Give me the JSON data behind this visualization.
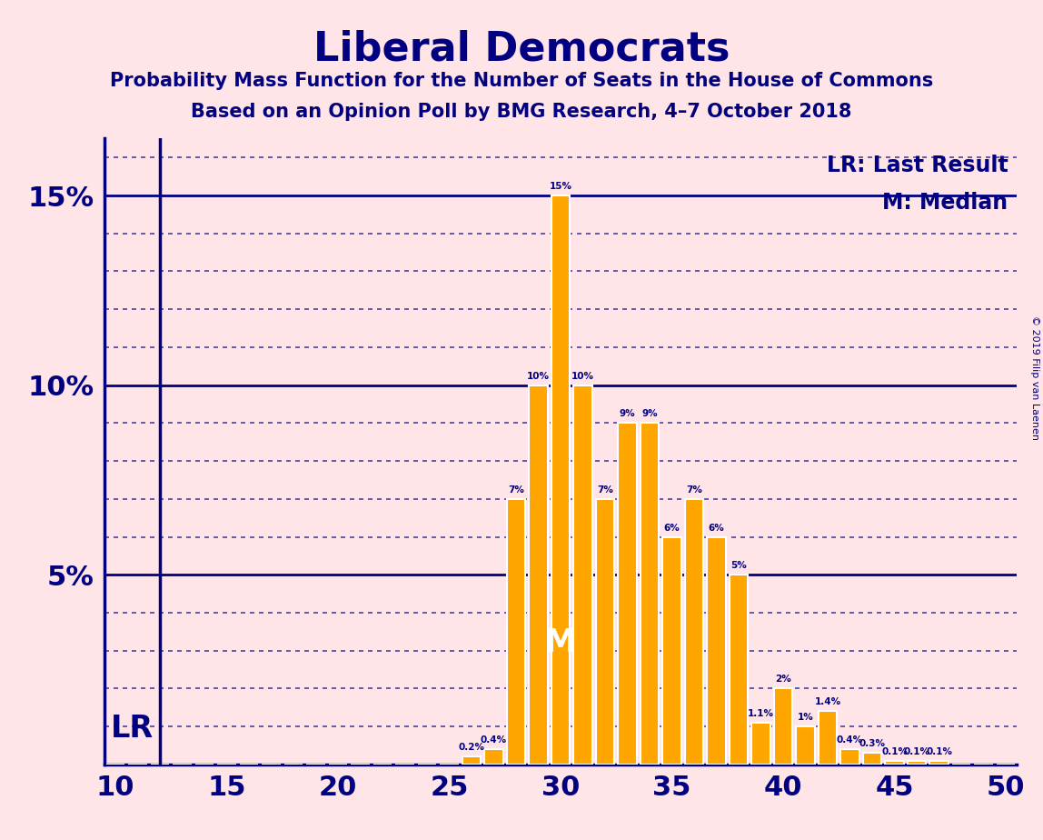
{
  "title": "Liberal Democrats",
  "subtitle1": "Probability Mass Function for the Number of Seats in the House of Commons",
  "subtitle2": "Based on an Opinion Poll by BMG Research, 4–7 October 2018",
  "copyright": "© 2019 Filip van Laenen",
  "background_color": "#FFE4E8",
  "bar_color": "#FFA500",
  "bar_edge_color": "#FFFFFF",
  "text_color": "#000080",
  "solid_line_color": "#000080",
  "dotted_line_color": "#4444AA",
  "seats": [
    10,
    11,
    12,
    13,
    14,
    15,
    16,
    17,
    18,
    19,
    20,
    21,
    22,
    23,
    24,
    25,
    26,
    27,
    28,
    29,
    30,
    31,
    32,
    33,
    34,
    35,
    36,
    37,
    38,
    39,
    40,
    41,
    42,
    43,
    44,
    45,
    46,
    47,
    48,
    49,
    50
  ],
  "probabilities": [
    0.0,
    0.0,
    0.0,
    0.0,
    0.0,
    0.0,
    0.0,
    0.0,
    0.0,
    0.0,
    0.0,
    0.0,
    0.0,
    0.0,
    0.0,
    0.0,
    0.2,
    0.4,
    7.0,
    10.0,
    15.0,
    10.0,
    7.0,
    9.0,
    9.0,
    6.0,
    7.0,
    6.0,
    5.0,
    1.1,
    2.0,
    1.0,
    1.4,
    0.4,
    0.3,
    0.1,
    0.1,
    0.1,
    0.0,
    0.0,
    0.0
  ],
  "xlim": [
    9.5,
    50.5
  ],
  "ylim": [
    0,
    16.5
  ],
  "yticks": [
    5,
    10,
    15
  ],
  "ytick_labels": [
    "5%",
    "10%",
    "15%"
  ],
  "xticks": [
    10,
    15,
    20,
    25,
    30,
    35,
    40,
    45,
    50
  ],
  "LR_seat": 12,
  "median_seat": 30,
  "legend_lr": "LR: Last Result",
  "legend_m": "M: Median"
}
